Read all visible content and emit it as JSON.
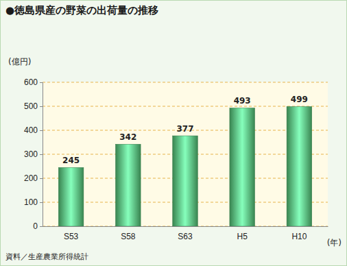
{
  "chart_data": {
    "type": "bar",
    "title": "●徳島県産の野菜の出荷量の推移",
    "ylabel": "(億円)",
    "xlabel": "(年)",
    "source": "資料／生産農業所得統計",
    "categories": [
      "S53",
      "S58",
      "S63",
      "H5",
      "H10"
    ],
    "values": [
      245,
      342,
      377,
      493,
      499
    ],
    "color": "#4caf6a",
    "ylim": [
      0,
      600
    ],
    "yticks": [
      0,
      100,
      200,
      300,
      400,
      500,
      600
    ],
    "grid": true,
    "data_labels": true
  }
}
